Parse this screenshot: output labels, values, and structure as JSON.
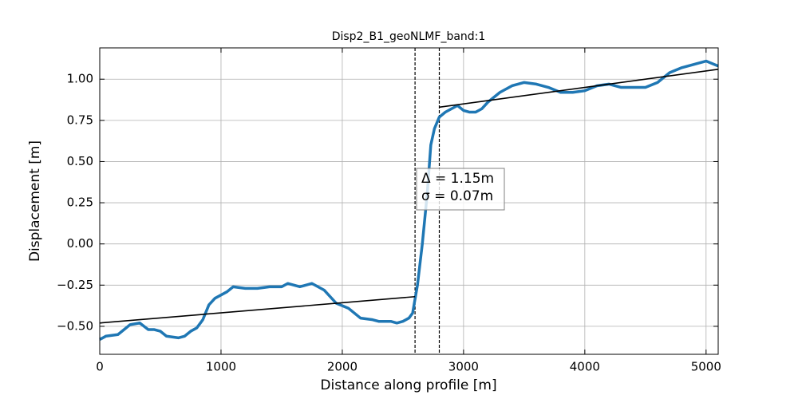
{
  "chart_data": {
    "type": "line",
    "title": "Disp2_B1_geoNLMF_band:1",
    "x_label": "Distance along profile [m]",
    "y_label": "Displacement [m]",
    "xlim": [
      0,
      5100
    ],
    "ylim": [
      -0.67,
      1.19
    ],
    "xticks": [
      0,
      1000,
      2000,
      3000,
      4000,
      5000
    ],
    "yticks": [
      {
        "value": -0.5,
        "label": "−0.50"
      },
      {
        "value": -0.25,
        "label": "−0.25"
      },
      {
        "value": 0,
        "label": "0.00"
      },
      {
        "value": 0.25,
        "label": "0.25"
      },
      {
        "value": 0.5,
        "label": "0.50"
      },
      {
        "value": 0.75,
        "label": "0.75"
      },
      {
        "value": 1,
        "label": "1.00"
      }
    ],
    "grid": true,
    "series": [
      {
        "color": "#1f77b4",
        "x": [
          0,
          50,
          150,
          250,
          330,
          400,
          450,
          500,
          550,
          650,
          700,
          750,
          800,
          850,
          900,
          950,
          1000,
          1050,
          1100,
          1200,
          1300,
          1400,
          1500,
          1550,
          1650,
          1750,
          1850,
          1950,
          2050,
          2150,
          2250,
          2300,
          2400,
          2450,
          2500,
          2550,
          2580,
          2620,
          2660,
          2700,
          2730,
          2760,
          2800,
          2850,
          2900,
          2950,
          3000,
          3050,
          3100,
          3150,
          3200,
          3300,
          3400,
          3500,
          3600,
          3700,
          3800,
          3900,
          4000,
          4100,
          4200,
          4300,
          4400,
          4500,
          4600,
          4700,
          4800,
          4900,
          5000,
          5100
        ],
        "values": [
          -0.58,
          -0.56,
          -0.55,
          -0.49,
          -0.48,
          -0.52,
          -0.52,
          -0.53,
          -0.56,
          -0.57,
          -0.56,
          -0.53,
          -0.51,
          -0.46,
          -0.37,
          -0.33,
          -0.31,
          -0.29,
          -0.26,
          -0.27,
          -0.27,
          -0.26,
          -0.26,
          -0.24,
          -0.26,
          -0.24,
          -0.28,
          -0.36,
          -0.39,
          -0.45,
          -0.46,
          -0.47,
          -0.47,
          -0.48,
          -0.47,
          -0.45,
          -0.42,
          -0.25,
          0.0,
          0.3,
          0.6,
          0.7,
          0.77,
          0.8,
          0.82,
          0.84,
          0.81,
          0.8,
          0.8,
          0.82,
          0.86,
          0.92,
          0.96,
          0.98,
          0.97,
          0.95,
          0.92,
          0.92,
          0.93,
          0.96,
          0.97,
          0.95,
          0.95,
          0.95,
          0.98,
          1.04,
          1.07,
          1.09,
          1.11,
          1.08
        ]
      },
      {
        "color": "#000000",
        "x": [
          0,
          2600
        ],
        "values": [
          -0.48,
          -0.32
        ]
      },
      {
        "color": "#000000",
        "x": [
          2800,
          5100
        ],
        "values": [
          0.83,
          1.06
        ]
      }
    ],
    "vlines": [
      2600,
      2800
    ],
    "annotations": [
      "Δ = 1.15m",
      "σ = 0.07m"
    ]
  }
}
